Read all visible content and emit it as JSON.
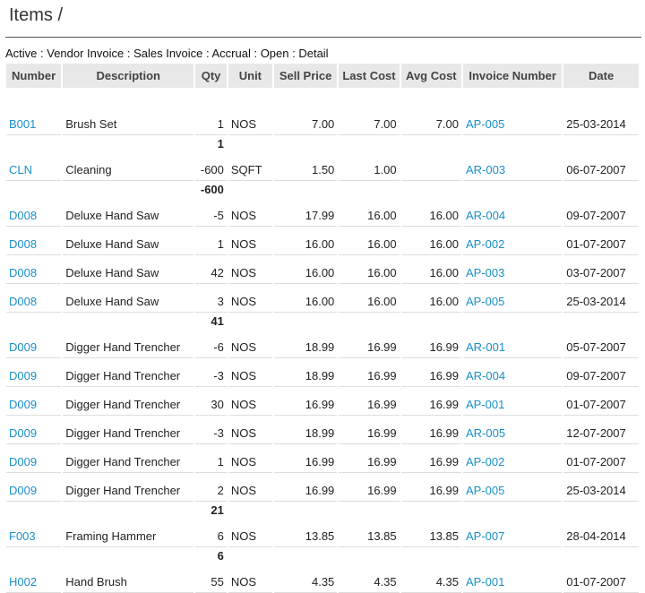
{
  "header": {
    "title": "Items /"
  },
  "filters": {
    "text": "Active : Vendor Invoice : Sales Invoice : Accrual : Open : Detail"
  },
  "table": {
    "columns": [
      "Number",
      "Description",
      "Qty",
      "Unit",
      "Sell Price",
      "Last Cost",
      "Avg Cost",
      "Invoice Number",
      "Date"
    ],
    "rows": [
      {
        "type": "item",
        "number": "B001",
        "description": "Brush Set",
        "qty": "1",
        "unit": "NOS",
        "sell": "7.00",
        "last": "7.00",
        "avg": "7.00",
        "invoice": "AP-005",
        "date": "25-03-2014"
      },
      {
        "type": "subtotal",
        "qty": "1"
      },
      {
        "type": "item",
        "number": "CLN",
        "description": "Cleaning",
        "qty": "-600",
        "unit": "SQFT",
        "sell": "1.50",
        "last": "1.00",
        "avg": "",
        "invoice": "AR-003",
        "date": "06-07-2007"
      },
      {
        "type": "subtotal",
        "qty": "-600"
      },
      {
        "type": "item",
        "number": "D008",
        "description": "Deluxe Hand Saw",
        "qty": "-5",
        "unit": "NOS",
        "sell": "17.99",
        "last": "16.00",
        "avg": "16.00",
        "invoice": "AR-004",
        "date": "09-07-2007"
      },
      {
        "type": "item",
        "number": "D008",
        "description": "Deluxe Hand Saw",
        "qty": "1",
        "unit": "NOS",
        "sell": "16.00",
        "last": "16.00",
        "avg": "16.00",
        "invoice": "AP-002",
        "date": "01-07-2007"
      },
      {
        "type": "item",
        "number": "D008",
        "description": "Deluxe Hand Saw",
        "qty": "42",
        "unit": "NOS",
        "sell": "16.00",
        "last": "16.00",
        "avg": "16.00",
        "invoice": "AP-003",
        "date": "03-07-2007"
      },
      {
        "type": "item",
        "number": "D008",
        "description": "Deluxe Hand Saw",
        "qty": "3",
        "unit": "NOS",
        "sell": "16.00",
        "last": "16.00",
        "avg": "16.00",
        "invoice": "AP-005",
        "date": "25-03-2014"
      },
      {
        "type": "subtotal",
        "qty": "41"
      },
      {
        "type": "item",
        "number": "D009",
        "description": "Digger Hand Trencher",
        "qty": "-6",
        "unit": "NOS",
        "sell": "18.99",
        "last": "16.99",
        "avg": "16.99",
        "invoice": "AR-001",
        "date": "05-07-2007"
      },
      {
        "type": "item",
        "number": "D009",
        "description": "Digger Hand Trencher",
        "qty": "-3",
        "unit": "NOS",
        "sell": "18.99",
        "last": "16.99",
        "avg": "16.99",
        "invoice": "AR-004",
        "date": "09-07-2007"
      },
      {
        "type": "item",
        "number": "D009",
        "description": "Digger Hand Trencher",
        "qty": "30",
        "unit": "NOS",
        "sell": "16.99",
        "last": "16.99",
        "avg": "16.99",
        "invoice": "AP-001",
        "date": "01-07-2007"
      },
      {
        "type": "item",
        "number": "D009",
        "description": "Digger Hand Trencher",
        "qty": "-3",
        "unit": "NOS",
        "sell": "18.99",
        "last": "16.99",
        "avg": "16.99",
        "invoice": "AR-005",
        "date": "12-07-2007"
      },
      {
        "type": "item",
        "number": "D009",
        "description": "Digger Hand Trencher",
        "qty": "1",
        "unit": "NOS",
        "sell": "16.99",
        "last": "16.99",
        "avg": "16.99",
        "invoice": "AP-002",
        "date": "01-07-2007"
      },
      {
        "type": "item",
        "number": "D009",
        "description": "Digger Hand Trencher",
        "qty": "2",
        "unit": "NOS",
        "sell": "16.99",
        "last": "16.99",
        "avg": "16.99",
        "invoice": "AP-005",
        "date": "25-03-2014"
      },
      {
        "type": "subtotal",
        "qty": "21"
      },
      {
        "type": "item",
        "number": "F003",
        "description": "Framing Hammer",
        "qty": "6",
        "unit": "NOS",
        "sell": "13.85",
        "last": "13.85",
        "avg": "13.85",
        "invoice": "AP-007",
        "date": "28-04-2014"
      },
      {
        "type": "subtotal",
        "qty": "6"
      },
      {
        "type": "item",
        "number": "H002",
        "description": "Hand Brush",
        "qty": "55",
        "unit": "NOS",
        "sell": "4.35",
        "last": "4.35",
        "avg": "4.35",
        "invoice": "AP-001",
        "date": "01-07-2007"
      }
    ]
  },
  "colors": {
    "link": "#1a8fc9",
    "header_bg": "#e8e8e8"
  }
}
